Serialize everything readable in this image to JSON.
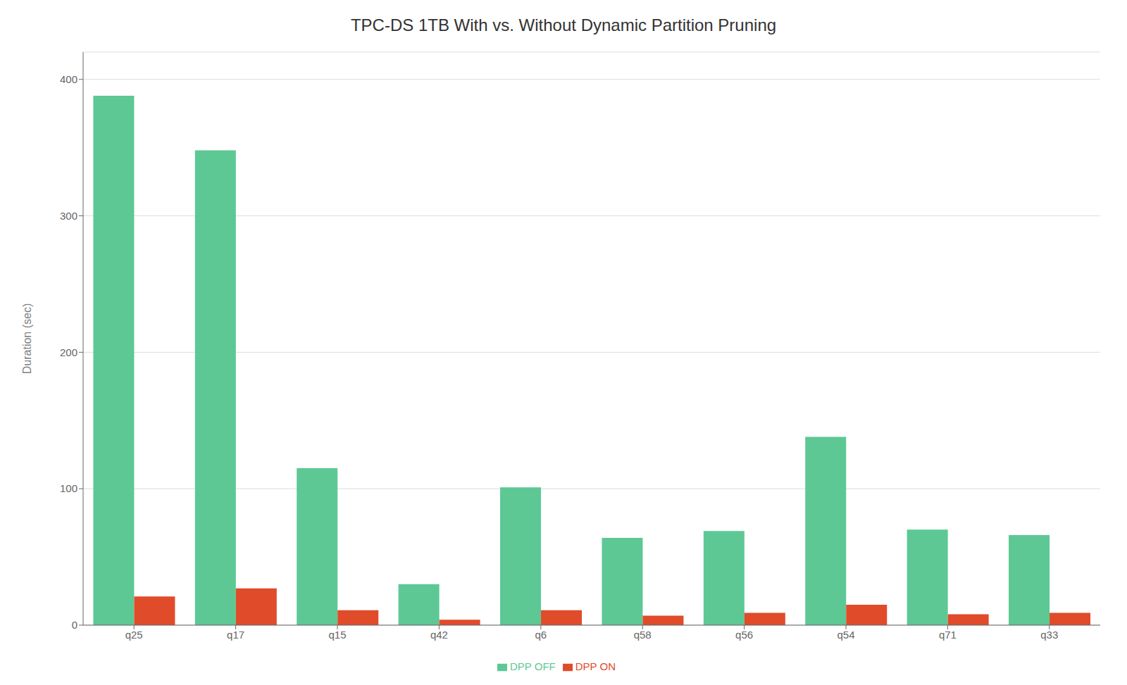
{
  "chart_data": {
    "type": "bar",
    "title": "TPC-DS 1TB With vs. Without Dynamic Partition Pruning",
    "ylabel": "Duration (sec)",
    "categories": [
      "q25",
      "q17",
      "q15",
      "q42",
      "q6",
      "q58",
      "q56",
      "q54",
      "q71",
      "q33"
    ],
    "series": [
      {
        "name": "DPP OFF",
        "color": "#5DC894",
        "values": [
          388,
          348,
          115,
          30,
          101,
          64,
          69,
          138,
          70,
          66
        ]
      },
      {
        "name": "DPP ON",
        "color": "#E04B2A",
        "values": [
          21,
          27,
          11,
          4,
          11,
          7,
          9,
          15,
          8,
          9
        ]
      }
    ],
    "ylim": [
      0,
      420
    ],
    "yticks": [
      0,
      100,
      200,
      300,
      400
    ],
    "grid": true,
    "legend": "bottom"
  }
}
